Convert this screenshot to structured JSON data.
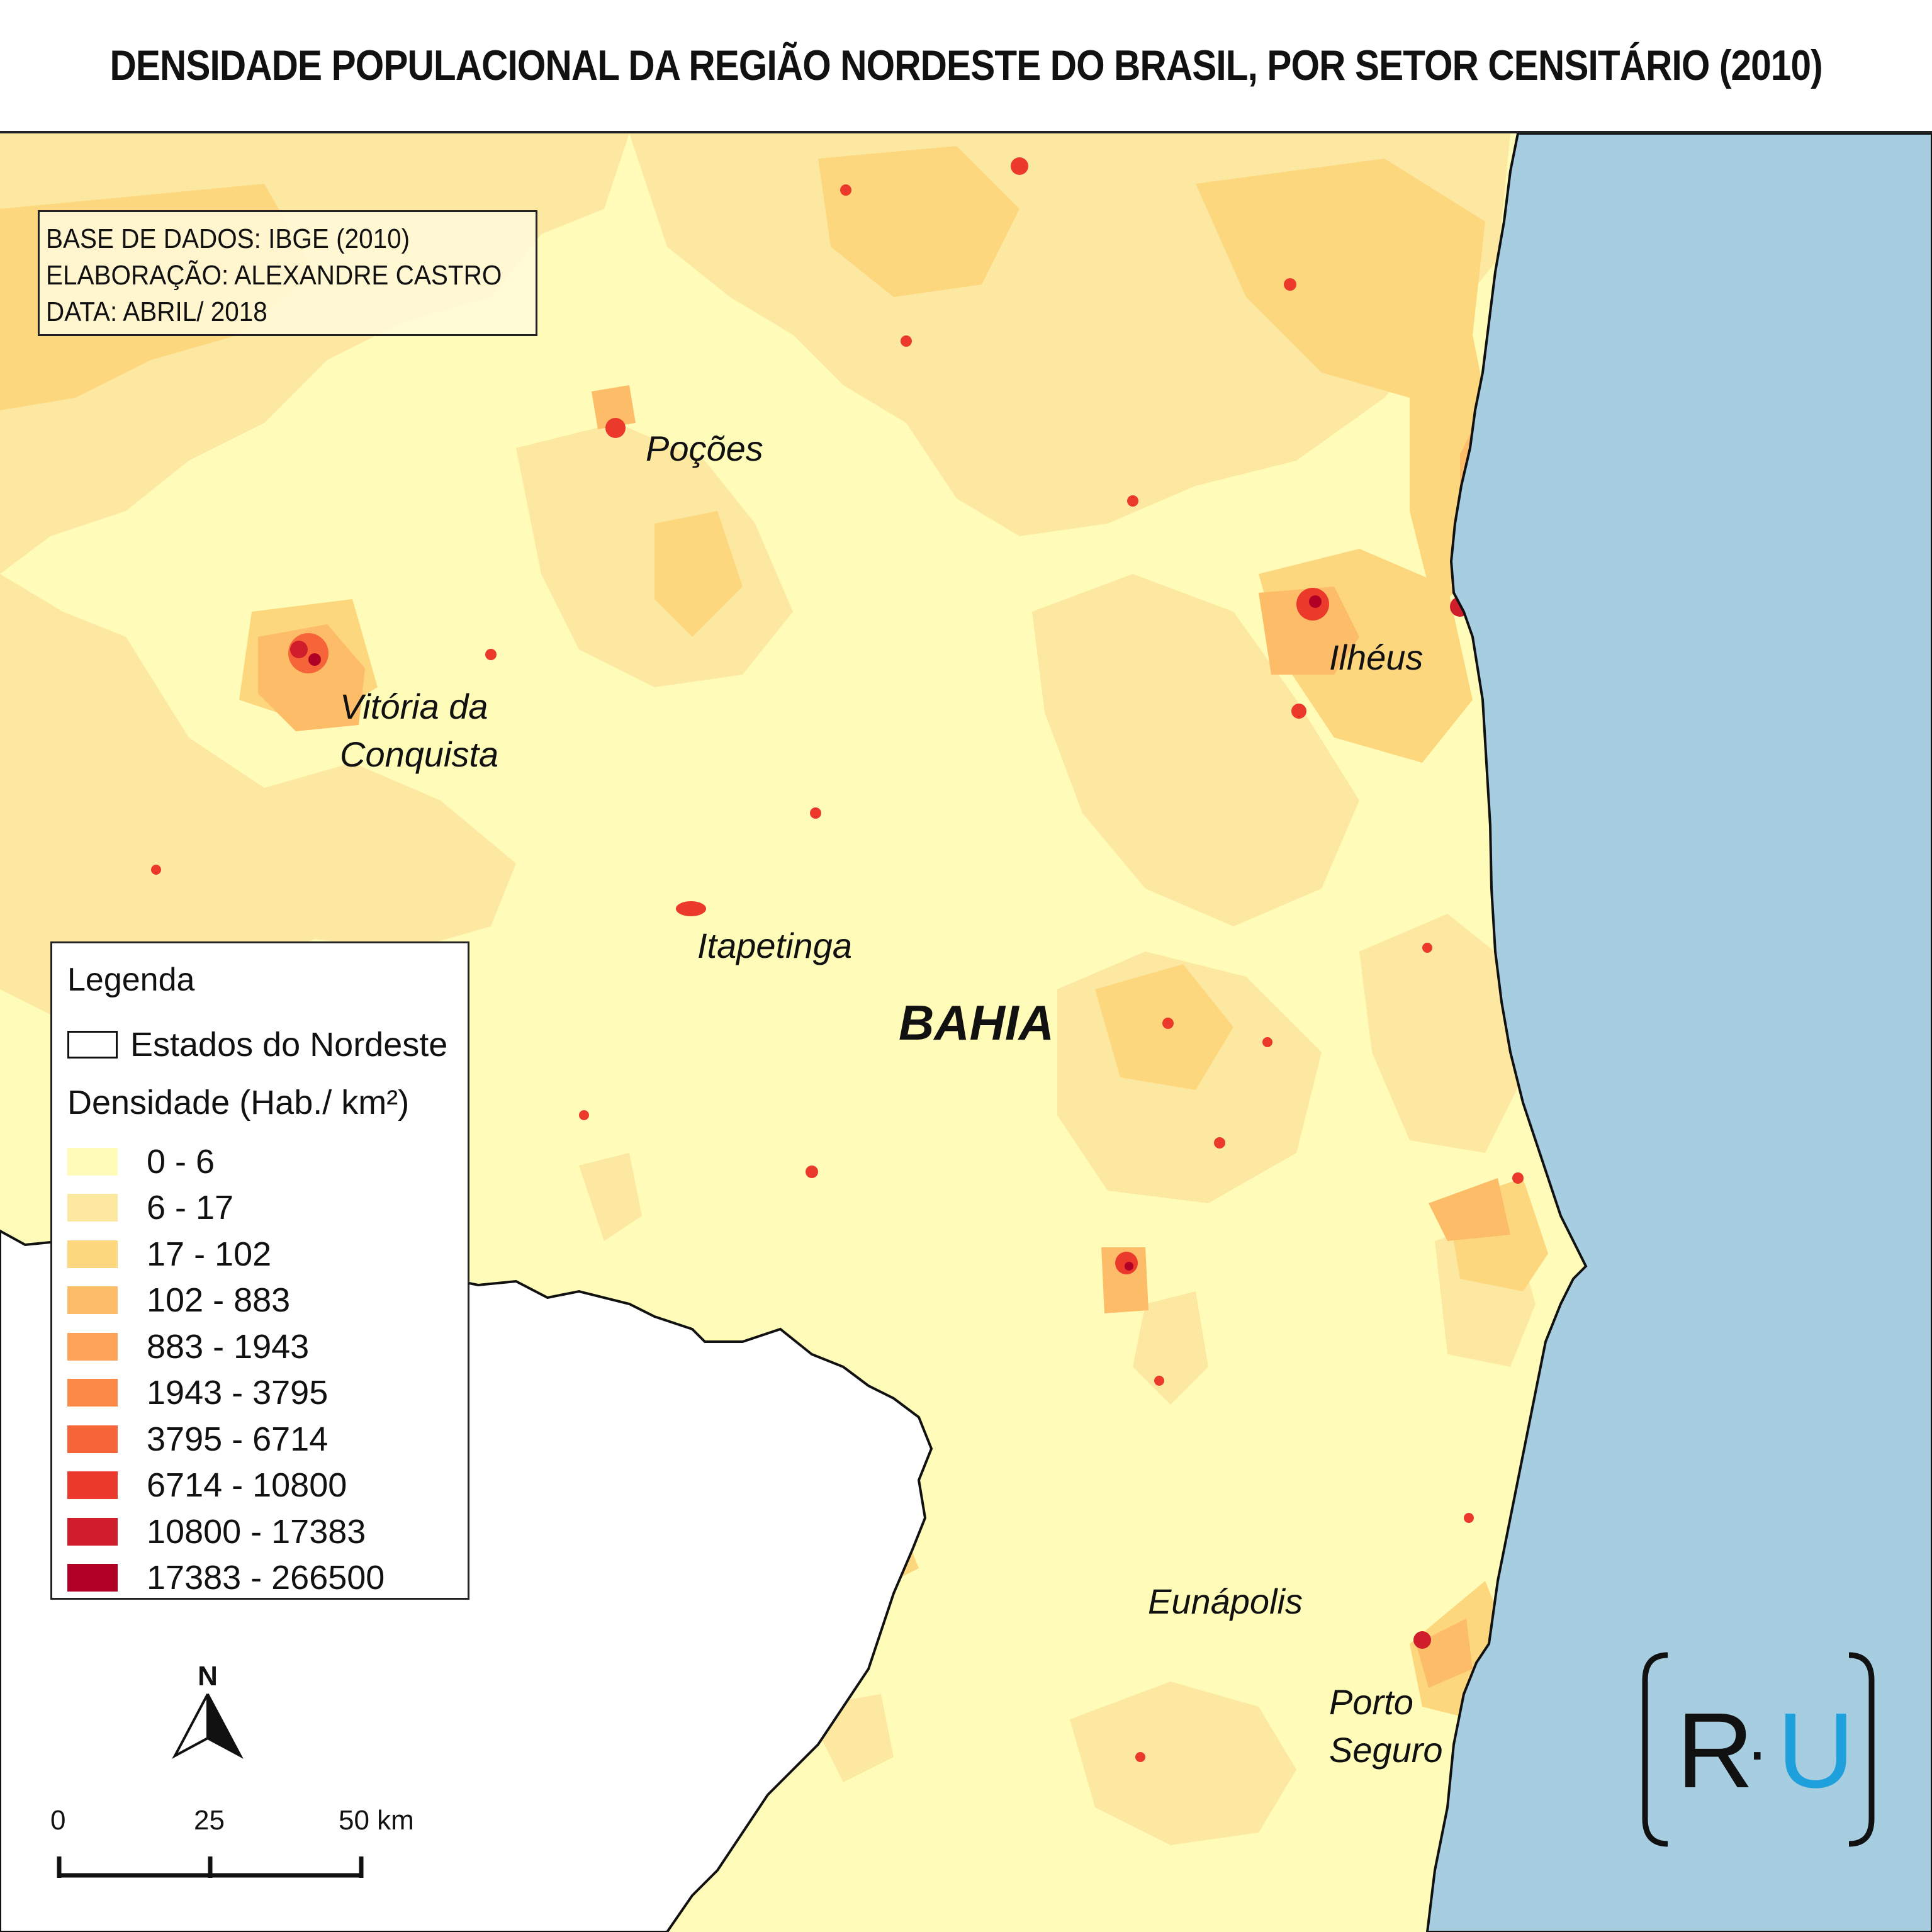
{
  "title": "DENSIDADE POPULACIONAL DA REGIÃO NORDESTE DO BRASIL, POR SETOR CENSITÁRIO (2010)",
  "credits": {
    "line1": "BASE DE DADOS: IBGE (2010)",
    "line2": "ELABORAÇÃO: ALEXANDRE CASTRO",
    "line3": "DATA: ABRIL/ 2018"
  },
  "places": {
    "pocoes": "Poções",
    "vitoria_1": "Vitória da",
    "vitoria_2": "Conquista",
    "itapetinga": "Itapetinga",
    "ilheus": "Ilhéus",
    "eunapolis": "Eunápolis",
    "porto_1": "Porto",
    "porto_2": "Seguro",
    "state": "BAHIA"
  },
  "legend": {
    "title": "Legenda",
    "states_label": "Estados do Nordeste",
    "density_title": "Densidade (Hab./ km²)",
    "classes": [
      {
        "label": "0 - 6",
        "color": "#fffbb8"
      },
      {
        "label": "6 - 17",
        "color": "#fde8a2"
      },
      {
        "label": "17 - 102",
        "color": "#fdd77e"
      },
      {
        "label": "102 - 883",
        "color": "#fdbc68"
      },
      {
        "label": "883 - 1943",
        "color": "#fda45a"
      },
      {
        "label": "1943 - 3795",
        "color": "#fc8a46"
      },
      {
        "label": "3795 - 6714",
        "color": "#f6653a"
      },
      {
        "label": "6714 - 10800",
        "color": "#eb3a2b"
      },
      {
        "label": "10800 - 17383",
        "color": "#d01d2b"
      },
      {
        "label": "17383 - 266500",
        "color": "#b00026"
      }
    ]
  },
  "north_label": "N",
  "scale": {
    "labels": [
      "0",
      "25",
      "50 km"
    ]
  },
  "logo": {
    "left": "R",
    "dot": "·",
    "right": "U"
  },
  "colors": {
    "sea": "#a6cde0",
    "outside": "#ffffff",
    "logo_accent": "#1ea0dc"
  }
}
